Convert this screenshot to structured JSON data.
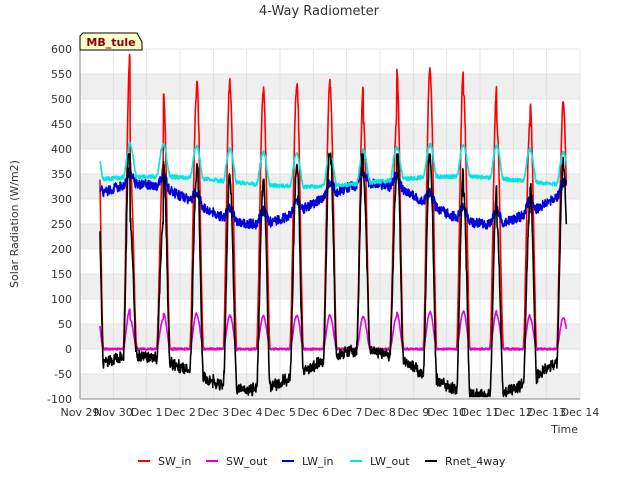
{
  "chart_data": {
    "type": "line",
    "title": "4-Way Radiometer",
    "xlabel": "Time",
    "ylabel": "Solar Radiation (W/m2)",
    "badge": "MB_tule",
    "xlim": [
      0,
      15
    ],
    "ylim": [
      -100,
      600
    ],
    "x_ticks": [
      {
        "v": 0,
        "label": "Nov 29"
      },
      {
        "v": 1,
        "label": "Nov 30"
      },
      {
        "v": 2,
        "label": "Dec 1"
      },
      {
        "v": 3,
        "label": "Dec 2"
      },
      {
        "v": 4,
        "label": "Dec 3"
      },
      {
        "v": 5,
        "label": "Dec 4"
      },
      {
        "v": 6,
        "label": "Dec 5"
      },
      {
        "v": 7,
        "label": "Dec 6"
      },
      {
        "v": 8,
        "label": "Dec 7"
      },
      {
        "v": 9,
        "label": "Dec 8"
      },
      {
        "v": 10,
        "label": "Dec 9"
      },
      {
        "v": 11,
        "label": "Dec 10"
      },
      {
        "v": 12,
        "label": "Dec 11"
      },
      {
        "v": 13,
        "label": "Dec 12"
      },
      {
        "v": 14,
        "label": "Dec 13"
      },
      {
        "v": 15,
        "label": "Dec 14"
      }
    ],
    "y_ticks": [
      -100,
      -50,
      0,
      50,
      100,
      150,
      200,
      250,
      300,
      350,
      400,
      450,
      500,
      550,
      600
    ],
    "grid": true,
    "legend_position": "bottom",
    "series": [
      {
        "name": "SW_in",
        "color": "#ff0000",
        "daily_peaks": [
          590,
          375,
          515,
          540,
          513,
          520,
          535,
          525,
          458,
          560,
          553,
          518,
          450,
          492
        ]
      },
      {
        "name": "SW_out",
        "color": "#e000e0",
        "daily_peaks": [
          80,
          60,
          72,
          68,
          66,
          66,
          68,
          66,
          64,
          74,
          74,
          76,
          68,
          62
        ]
      },
      {
        "name": "LW_in",
        "color": "#0000dd",
        "range": [
          240,
          365
        ]
      },
      {
        "name": "LW_out",
        "color": "#00e5e5",
        "range": [
          310,
          420
        ]
      },
      {
        "name": "Rnet_4way",
        "color": "#000000",
        "range": [
          -95,
          390
        ]
      }
    ]
  }
}
